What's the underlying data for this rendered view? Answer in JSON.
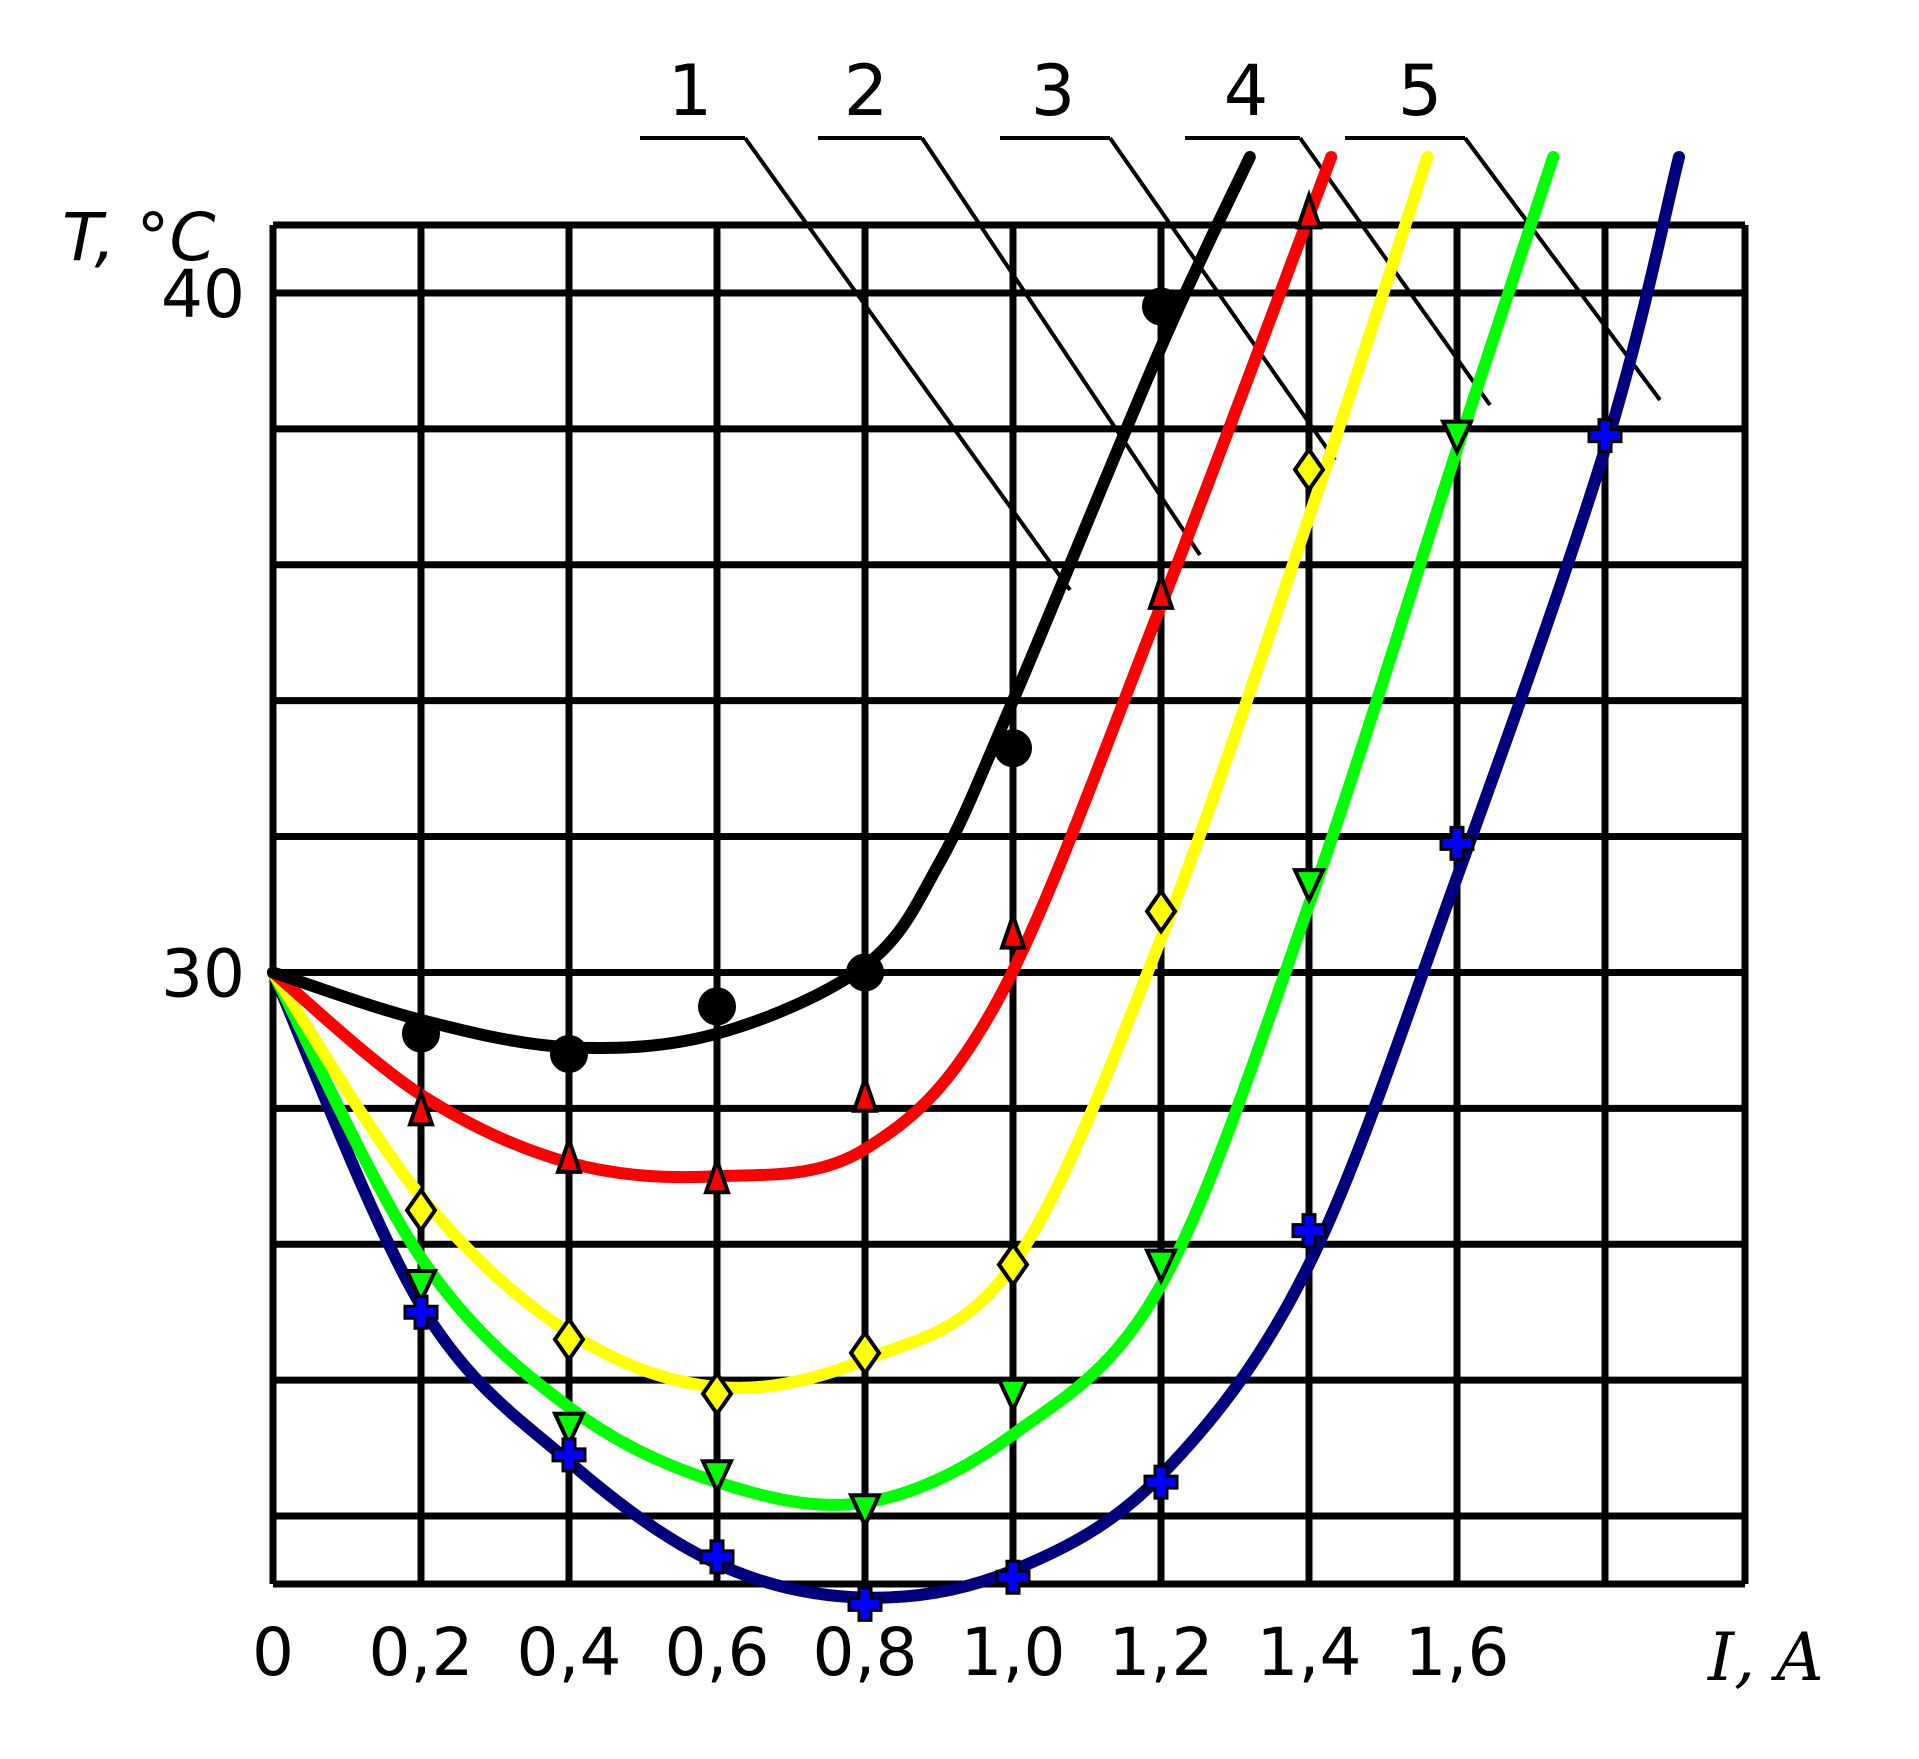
{
  "chart_data": {
    "type": "line",
    "title": "",
    "xlabel": "I, A",
    "ylabel": "T, °C",
    "xlim": [
      0,
      1.95
    ],
    "ylim": [
      21.0,
      41.0
    ],
    "grid": true,
    "x_ticks": [
      {
        "value": 0,
        "label": "0"
      },
      {
        "value": 0.2,
        "label": "0,2"
      },
      {
        "value": 0.4,
        "label": "0,4"
      },
      {
        "value": 0.6,
        "label": "0,6"
      },
      {
        "value": 0.8,
        "label": "0,8"
      },
      {
        "value": 1.0,
        "label": "1,0"
      },
      {
        "value": 1.2,
        "label": "1,2"
      },
      {
        "value": 1.4,
        "label": "1,4"
      },
      {
        "value": 1.6,
        "label": "1,6"
      }
    ],
    "y_ticks": [
      {
        "value": 30,
        "label": "30"
      },
      {
        "value": 40,
        "label": "40"
      }
    ],
    "series": [
      {
        "name": "1",
        "color": "#000000",
        "marker": "circle",
        "points": [
          [
            0.2,
            29.1
          ],
          [
            0.4,
            28.8
          ],
          [
            0.6,
            29.5
          ],
          [
            0.8,
            30.0
          ],
          [
            1.0,
            33.3
          ],
          [
            1.2,
            39.8
          ]
        ],
        "fit": [
          [
            0.0,
            30.0
          ],
          [
            0.2,
            29.3
          ],
          [
            0.4,
            28.9
          ],
          [
            0.6,
            29.1
          ],
          [
            0.8,
            30.1
          ],
          [
            0.9,
            31.6
          ],
          [
            1.0,
            34.0
          ],
          [
            1.2,
            39.2
          ],
          [
            1.32,
            42.0
          ]
        ]
      },
      {
        "name": "2",
        "color": "#ff0000",
        "marker": "triangle-up",
        "points": [
          [
            0.2,
            28.0
          ],
          [
            0.4,
            27.3
          ],
          [
            0.6,
            27.0
          ],
          [
            0.8,
            28.2
          ],
          [
            1.0,
            30.6
          ],
          [
            1.2,
            35.6
          ],
          [
            1.4,
            41.2
          ]
        ],
        "fit": [
          [
            0.0,
            30.0
          ],
          [
            0.2,
            28.2
          ],
          [
            0.4,
            27.2
          ],
          [
            0.6,
            27.0
          ],
          [
            0.8,
            27.4
          ],
          [
            0.98,
            29.6
          ],
          [
            1.2,
            35.4
          ],
          [
            1.43,
            42.0
          ]
        ]
      },
      {
        "name": "3",
        "color": "#ffff00",
        "marker": "diamond",
        "points": [
          [
            0.2,
            26.5
          ],
          [
            0.4,
            24.6
          ],
          [
            0.6,
            23.8
          ],
          [
            0.8,
            24.4
          ],
          [
            1.0,
            25.7
          ],
          [
            1.2,
            30.9
          ],
          [
            1.4,
            37.4
          ]
        ],
        "fit": [
          [
            0.0,
            30.0
          ],
          [
            0.2,
            26.7
          ],
          [
            0.4,
            24.7
          ],
          [
            0.6,
            23.9
          ],
          [
            0.8,
            24.3
          ],
          [
            1.0,
            25.7
          ],
          [
            1.2,
            30.5
          ],
          [
            1.4,
            36.7
          ],
          [
            1.56,
            42.0
          ]
        ]
      },
      {
        "name": "4",
        "color": "#00ff00",
        "marker": "triangle-down",
        "points": [
          [
            0.2,
            25.4
          ],
          [
            0.4,
            23.3
          ],
          [
            0.6,
            22.6
          ],
          [
            0.8,
            22.1
          ],
          [
            1.0,
            23.8
          ],
          [
            1.2,
            25.7
          ],
          [
            1.4,
            31.3
          ],
          [
            1.6,
            37.9
          ]
        ],
        "fit": [
          [
            0.0,
            30.0
          ],
          [
            0.2,
            25.8
          ],
          [
            0.4,
            23.6
          ],
          [
            0.6,
            22.5
          ],
          [
            0.8,
            22.2
          ],
          [
            1.0,
            23.2
          ],
          [
            1.2,
            25.4
          ],
          [
            1.4,
            31.0
          ],
          [
            1.6,
            37.7
          ],
          [
            1.73,
            42.0
          ]
        ]
      },
      {
        "name": "5",
        "color": "#00007f",
        "marker": "plus",
        "points": [
          [
            0.2,
            25.0
          ],
          [
            0.4,
            22.9
          ],
          [
            0.6,
            21.4
          ],
          [
            0.8,
            20.7
          ],
          [
            1.0,
            21.1
          ],
          [
            1.2,
            22.5
          ],
          [
            1.4,
            26.2
          ],
          [
            1.6,
            31.9
          ],
          [
            1.8,
            37.9
          ]
        ],
        "fit": [
          [
            0.0,
            30.0
          ],
          [
            0.2,
            25.1
          ],
          [
            0.4,
            22.8
          ],
          [
            0.6,
            21.3
          ],
          [
            0.8,
            20.8
          ],
          [
            1.0,
            21.2
          ],
          [
            1.2,
            22.6
          ],
          [
            1.4,
            25.7
          ],
          [
            1.6,
            31.4
          ],
          [
            1.8,
            37.7
          ],
          [
            1.9,
            42.0
          ]
        ]
      }
    ],
    "curve_labels": [
      "1",
      "2",
      "3",
      "4",
      "5"
    ]
  }
}
